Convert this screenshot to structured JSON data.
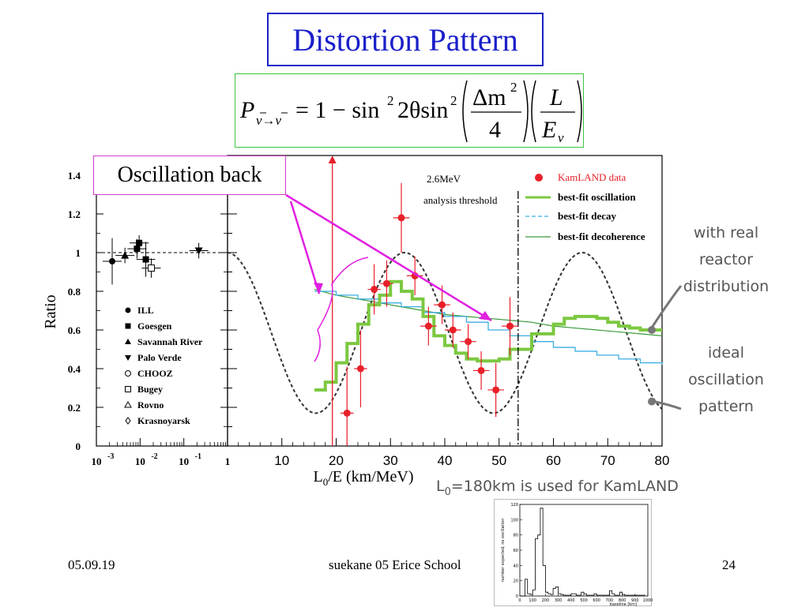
{
  "slide": {
    "title": "Distortion Pattern",
    "callout": "Oscillation back",
    "footer_left": "05.09.19",
    "footer_center": "suekane 05 Erice School",
    "footer_right": "24",
    "note_real": [
      "with real",
      "reactor",
      "distribution"
    ],
    "note_ideal": [
      "ideal",
      "oscillation",
      "pattern"
    ],
    "baseline_note": "L",
    "baseline_note_sub": "0",
    "baseline_note_rest": "=180km is used for KamLAND"
  },
  "formula": {
    "P": "P",
    "sub": "ν→ν",
    "eq": "= 1 − sin",
    "sq": "2",
    "two_theta": "2θsin",
    "sq2": "2",
    "dm": "Δm",
    "dm_sq": "2",
    "four": "4",
    "L": "L",
    "E": "E",
    "nu": "ν"
  },
  "chart_data": [
    {
      "type": "scatter",
      "panel": "short-baseline experiments (log x)",
      "ylabel": "Ratio",
      "xscale": "log",
      "xlim": [
        0.001,
        1
      ],
      "ylim": [
        0,
        1.4
      ],
      "xticks": [
        "10",
        "10",
        "10",
        "1"
      ],
      "xtick_exp": [
        "-3",
        "-2",
        "-1",
        ""
      ],
      "yticks": [
        "0",
        "0.2",
        "0.4",
        "0.6",
        "0.8",
        "1",
        "1.2",
        "1.4"
      ],
      "legend": [
        "ILL",
        "Goesgen",
        "Savannah River",
        "Palo Verde",
        "CHOOZ",
        "Bugey",
        "Rovno",
        "Krasnoyarsk"
      ],
      "points": [
        {
          "x": 0.0023,
          "y": 0.955,
          "err": 0.12,
          "marker": "circle-filled"
        },
        {
          "x": 0.0045,
          "y": 0.985,
          "err": 0.04,
          "marker": "triangle-up"
        },
        {
          "x": 0.0085,
          "y": 1.02,
          "err": 0.05,
          "marker": "square-filled"
        },
        {
          "x": 0.0095,
          "y": 1.05,
          "err": 0.04,
          "marker": "square-filled"
        },
        {
          "x": 0.0135,
          "y": 0.965,
          "err": 0.09,
          "marker": "square-filled"
        },
        {
          "x": 0.018,
          "y": 0.92,
          "err": 0.05,
          "marker": "square-open"
        },
        {
          "x": 0.22,
          "y": 1.01,
          "err": 0.04,
          "marker": "triangle-down"
        }
      ]
    },
    {
      "type": "line",
      "panel": "KamLAND",
      "xlabel": "L",
      "xlabel_sub": "0",
      "xlabel_rest": "/E (km/MeV)",
      "xlim": [
        0,
        80
      ],
      "ylim": [
        0,
        1.4
      ],
      "xticks": [
        "10",
        "20",
        "30",
        "40",
        "50",
        "60",
        "70",
        "80"
      ],
      "threshold_x": 53.5,
      "threshold_label": [
        "2.6MeV",
        "analysis threshold"
      ],
      "legend": [
        "KamLAND data",
        "best-fit oscillation",
        "best-fit decay",
        "best-fit decoherence"
      ],
      "colors": {
        "data": "#e8202a",
        "oscillation": "#7cc840",
        "decay": "#3aaee0",
        "decoherence": "#3a9a3a",
        "ideal": "#333333"
      },
      "kamland_data": [
        {
          "x": 22.0,
          "y": 0.17,
          "yerr": 0.24,
          "xerr": 1.2
        },
        {
          "x": 24.5,
          "y": 0.4,
          "yerr": 0.2,
          "xerr": 1.2
        },
        {
          "x": 27.0,
          "y": 0.81,
          "yerr": 0.13,
          "xerr": 1.2
        },
        {
          "x": 29.3,
          "y": 0.84,
          "yerr": 0.12,
          "xerr": 1.2
        },
        {
          "x": 32.0,
          "y": 1.18,
          "yerr": 0.18,
          "xerr": 1.5
        },
        {
          "x": 34.5,
          "y": 0.88,
          "yerr": 0.1,
          "xerr": 1.5
        },
        {
          "x": 37.0,
          "y": 0.62,
          "yerr": 0.1,
          "xerr": 1.5
        },
        {
          "x": 39.5,
          "y": 0.73,
          "yerr": 0.1,
          "xerr": 1.5
        },
        {
          "x": 41.5,
          "y": 0.6,
          "yerr": 0.09,
          "xerr": 1.5
        },
        {
          "x": 44.3,
          "y": 0.54,
          "yerr": 0.09,
          "xerr": 1.5
        },
        {
          "x": 46.7,
          "y": 0.39,
          "yerr": 0.1,
          "xerr": 1.5
        },
        {
          "x": 49.4,
          "y": 0.29,
          "yerr": 0.14,
          "xerr": 1.5
        },
        {
          "x": 52.0,
          "y": 0.62,
          "yerr": 0.15,
          "xerr": 1.5
        }
      ],
      "arrow_point": {
        "x": 19.3,
        "y_from": 0.0,
        "y_to": 1.4
      },
      "best_fit_oscillation": [
        [
          16,
          0.29
        ],
        [
          18,
          0.29
        ],
        [
          18,
          0.33
        ],
        [
          20,
          0.33
        ],
        [
          20,
          0.43
        ],
        [
          22,
          0.43
        ],
        [
          22,
          0.53
        ],
        [
          24,
          0.53
        ],
        [
          24,
          0.63
        ],
        [
          26,
          0.63
        ],
        [
          26,
          0.73
        ],
        [
          28,
          0.73
        ],
        [
          28,
          0.78
        ],
        [
          30,
          0.78
        ],
        [
          30,
          0.85
        ],
        [
          32,
          0.85
        ],
        [
          32,
          0.8
        ],
        [
          34,
          0.8
        ],
        [
          34,
          0.76
        ],
        [
          36,
          0.76
        ],
        [
          36,
          0.67
        ],
        [
          38,
          0.67
        ],
        [
          38,
          0.57
        ],
        [
          40,
          0.57
        ],
        [
          40,
          0.52
        ],
        [
          42,
          0.52
        ],
        [
          42,
          0.48
        ],
        [
          44,
          0.48
        ],
        [
          44,
          0.45
        ],
        [
          46,
          0.45
        ],
        [
          46,
          0.44
        ],
        [
          50,
          0.44
        ],
        [
          50,
          0.45
        ],
        [
          52,
          0.45
        ],
        [
          52,
          0.5
        ],
        [
          56,
          0.5
        ],
        [
          56,
          0.58
        ],
        [
          60,
          0.58
        ],
        [
          60,
          0.63
        ],
        [
          62,
          0.63
        ],
        [
          62,
          0.66
        ],
        [
          64,
          0.66
        ],
        [
          64,
          0.67
        ],
        [
          68,
          0.67
        ],
        [
          68,
          0.66
        ],
        [
          70,
          0.66
        ],
        [
          70,
          0.64
        ],
        [
          72,
          0.64
        ],
        [
          72,
          0.62
        ],
        [
          74,
          0.62
        ],
        [
          74,
          0.61
        ],
        [
          76,
          0.61
        ],
        [
          76,
          0.6
        ],
        [
          80,
          0.6
        ]
      ],
      "best_fit_decay": [
        [
          16,
          0.8
        ],
        [
          20,
          0.78
        ],
        [
          24,
          0.76
        ],
        [
          28,
          0.74
        ],
        [
          32,
          0.72
        ],
        [
          36,
          0.69
        ],
        [
          40,
          0.67
        ],
        [
          44,
          0.64
        ],
        [
          48,
          0.6
        ],
        [
          52,
          0.57
        ],
        [
          56,
          0.54
        ],
        [
          60,
          0.51
        ],
        [
          64,
          0.49
        ],
        [
          68,
          0.47
        ],
        [
          72,
          0.45
        ],
        [
          76,
          0.43
        ],
        [
          80,
          0.42
        ]
      ],
      "best_fit_decoherence": [
        [
          16,
          0.81
        ],
        [
          20,
          0.78
        ],
        [
          24,
          0.76
        ],
        [
          28,
          0.74
        ],
        [
          32,
          0.72
        ],
        [
          36,
          0.7
        ],
        [
          40,
          0.68
        ],
        [
          44,
          0.67
        ],
        [
          48,
          0.66
        ],
        [
          52,
          0.65
        ],
        [
          56,
          0.64
        ],
        [
          60,
          0.62
        ],
        [
          64,
          0.61
        ],
        [
          68,
          0.6
        ],
        [
          72,
          0.59
        ],
        [
          76,
          0.58
        ],
        [
          80,
          0.57
        ]
      ],
      "ideal_oscillation": {
        "x_start": 0,
        "x_end": 80,
        "minima_at": [
          16.3,
          49.0
        ],
        "maxima_at": [
          32.6,
          65.3
        ],
        "ymax": 1.0,
        "ymin": 0.17
      }
    },
    {
      "type": "bar",
      "panel": "inset baseline distribution",
      "xlabel": "baseline [km]",
      "ylabel": "number expected, no oscillation",
      "xlim": [
        0,
        1000
      ],
      "ylim": [
        0,
        120
      ],
      "xticks": [
        "0",
        "100",
        "200",
        "300",
        "400",
        "500",
        "600",
        "700",
        "800",
        "900",
        "1000"
      ],
      "yticks": [
        "0",
        "20",
        "40",
        "60",
        "80",
        "100",
        "120"
      ],
      "bins_km": [
        [
          20,
          0
        ],
        [
          40,
          0
        ],
        [
          60,
          22
        ],
        [
          80,
          3
        ],
        [
          100,
          2
        ],
        [
          120,
          8
        ],
        [
          140,
          75
        ],
        [
          160,
          80
        ],
        [
          180,
          115
        ],
        [
          200,
          40
        ],
        [
          220,
          5
        ],
        [
          240,
          3
        ],
        [
          260,
          2
        ],
        [
          280,
          10
        ],
        [
          300,
          12
        ],
        [
          320,
          3
        ],
        [
          340,
          2
        ],
        [
          360,
          1
        ],
        [
          380,
          1
        ],
        [
          400,
          1
        ],
        [
          420,
          3
        ],
        [
          440,
          3
        ],
        [
          460,
          1
        ],
        [
          480,
          1
        ],
        [
          500,
          5
        ],
        [
          520,
          3
        ],
        [
          540,
          1
        ],
        [
          560,
          1
        ],
        [
          580,
          1
        ],
        [
          600,
          3
        ],
        [
          620,
          1
        ],
        [
          640,
          1
        ],
        [
          660,
          1
        ],
        [
          680,
          1
        ],
        [
          700,
          1
        ],
        [
          720,
          7
        ],
        [
          740,
          3
        ],
        [
          760,
          1
        ],
        [
          780,
          1
        ],
        [
          800,
          5
        ],
        [
          820,
          2
        ],
        [
          840,
          1
        ],
        [
          860,
          1
        ],
        [
          880,
          1
        ],
        [
          900,
          1
        ],
        [
          920,
          1
        ],
        [
          940,
          1
        ],
        [
          960,
          1
        ],
        [
          980,
          1
        ]
      ]
    }
  ]
}
